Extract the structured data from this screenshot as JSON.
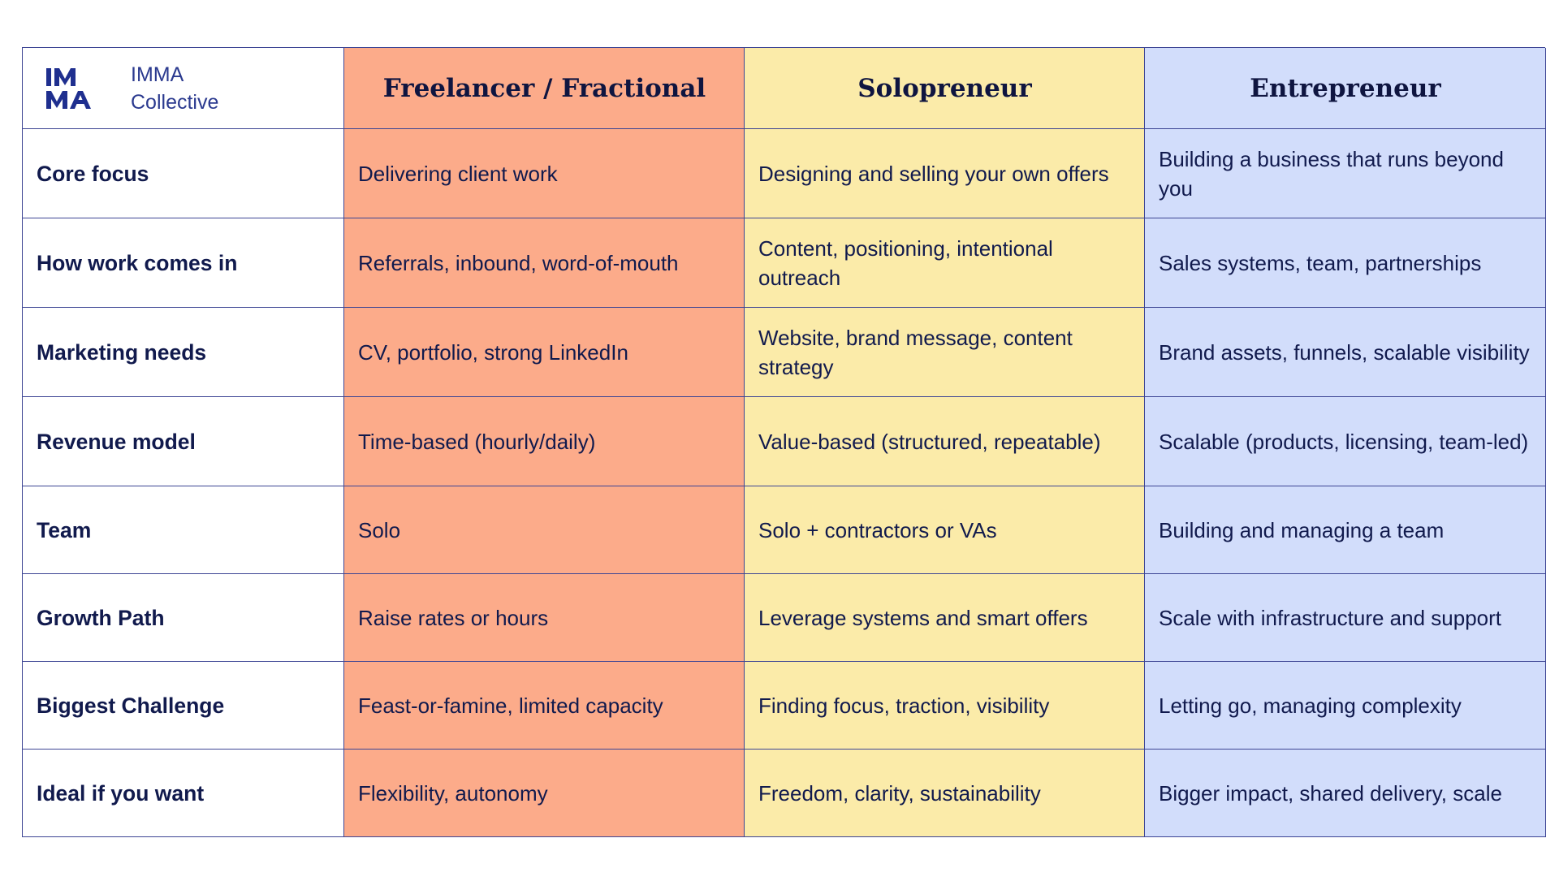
{
  "brand": {
    "line1": "IMMA",
    "line2": "Collective",
    "accent": "#1f2f8f"
  },
  "colors": {
    "freelancer": "#fcab8a",
    "solopreneur": "#fbeba9",
    "entrepreneur": "#d2ddfb",
    "border": "#3d4594"
  },
  "columns": [
    "Freelancer / Fractional",
    "Solopreneur",
    "Entrepreneur"
  ],
  "rows": [
    {
      "label": "Core focus",
      "values": [
        "Delivering client work",
        "Designing and selling your own offers",
        "Building a business that runs beyond you"
      ]
    },
    {
      "label": "How work comes in",
      "values": [
        "Referrals, inbound, word-of-mouth",
        "Content, positioning, intentional outreach",
        "Sales systems, team, partnerships"
      ]
    },
    {
      "label": "Marketing needs",
      "values": [
        "CV, portfolio, strong LinkedIn",
        "Website, brand message, content strategy",
        "Brand assets, funnels, scalable visibility"
      ]
    },
    {
      "label": "Revenue model",
      "values": [
        "Time-based (hourly/daily)",
        "Value-based (structured, repeatable)",
        "Scalable (products, licensing, team-led)"
      ]
    },
    {
      "label": "Team",
      "values": [
        "Solo",
        "Solo + contractors or VAs",
        "Building and managing a team"
      ]
    },
    {
      "label": "Growth Path",
      "values": [
        "Raise rates or hours",
        "Leverage systems and smart offers",
        "Scale with infrastructure and support"
      ]
    },
    {
      "label": "Biggest Challenge",
      "values": [
        "Feast-or-famine, limited capacity",
        "Finding focus, traction, visibility",
        "Letting go, managing complexity"
      ]
    },
    {
      "label": "Ideal if you want",
      "values": [
        "Flexibility, autonomy",
        "Freedom, clarity, sustainability",
        "Bigger impact, shared delivery, scale"
      ]
    }
  ]
}
